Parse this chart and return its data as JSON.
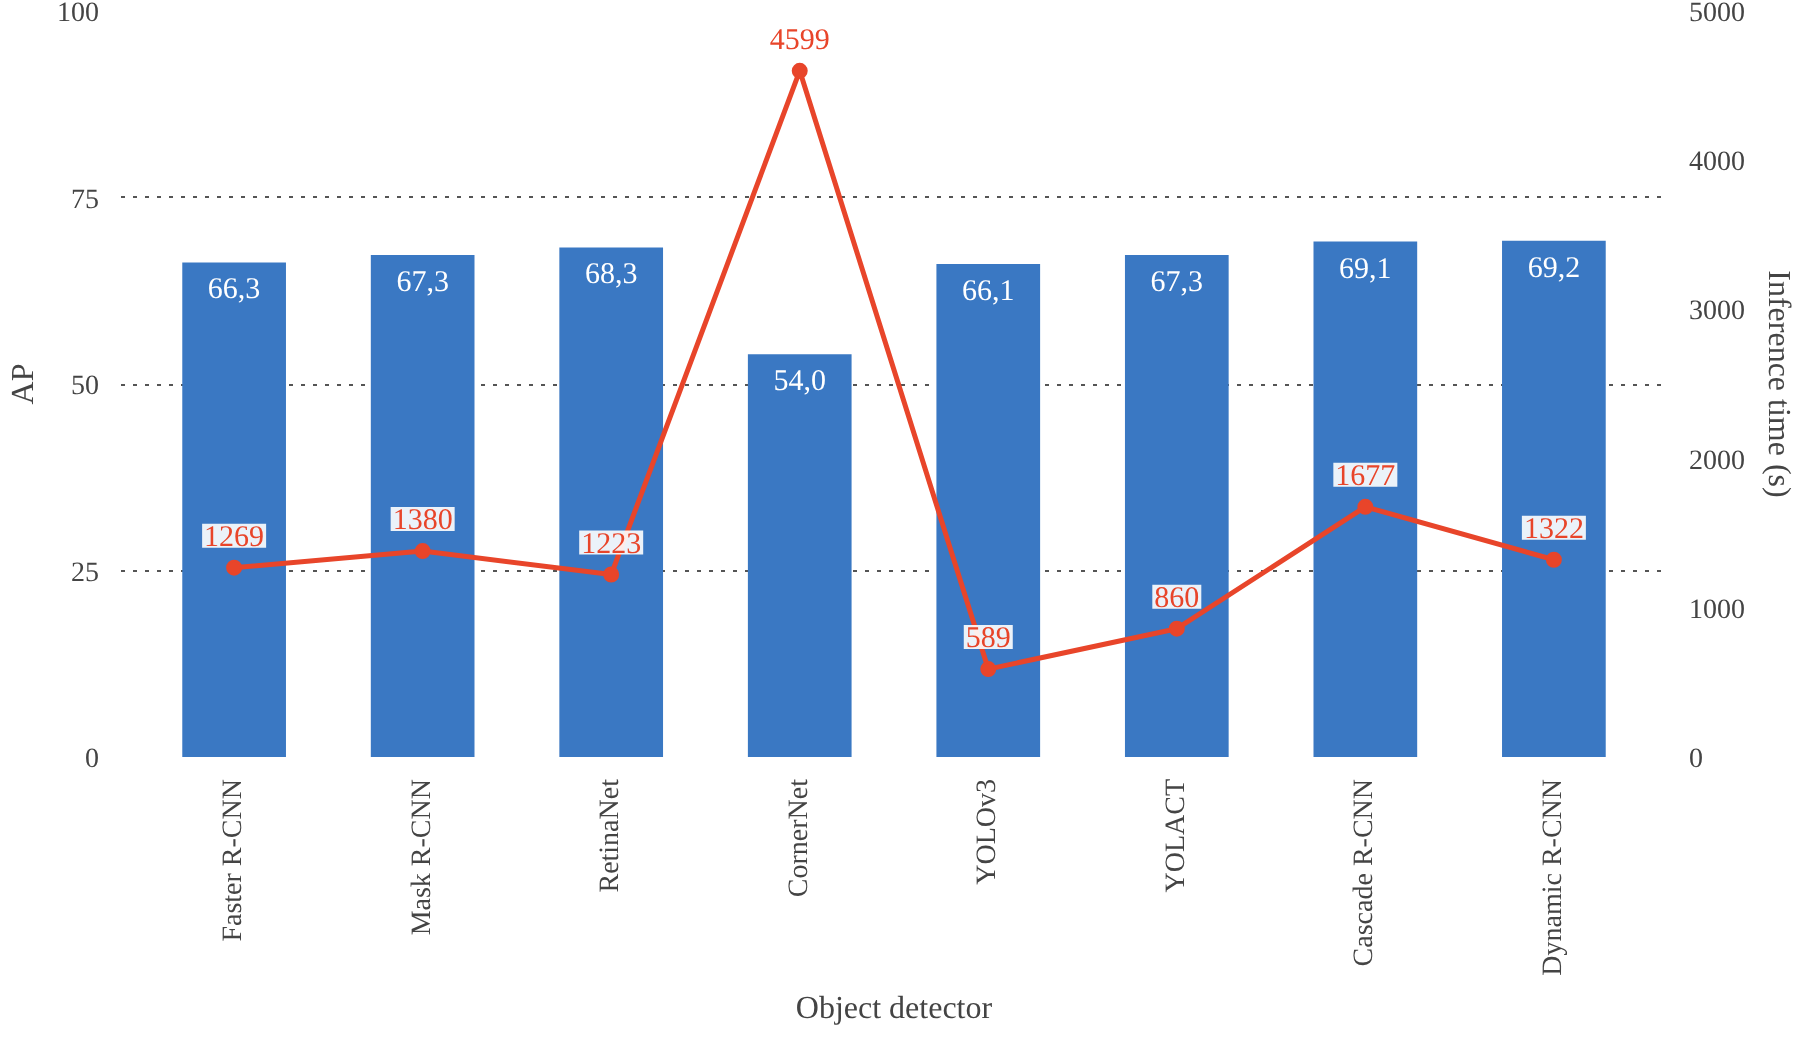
{
  "chart_data": {
    "type": "bar",
    "xlabel": "Object detector",
    "ylabel": "AP",
    "y2label": "Inference time (s)",
    "categories": [
      "Faster R-CNN",
      "Mask R-CNN",
      "RetinaNet",
      "CornerNet",
      "YOLOv3",
      "YOLACT",
      "Cascade R-CNN",
      "Dynamic R-CNN"
    ],
    "series": [
      {
        "color": "#3a78c3",
        "values": [
          66.3,
          67.3,
          68.3,
          54.0,
          66.1,
          67.3,
          69.1,
          69.2
        ],
        "value_labels": [
          "66,3",
          "67,3",
          "68,3",
          "54,0",
          "66,1",
          "67,3",
          "69,1",
          "69,2"
        ]
      },
      {
        "type": "line",
        "axis": "y2",
        "color": "#e8452a",
        "marker": "circle",
        "values": [
          1269,
          1380,
          1223,
          4599,
          589,
          860,
          1677,
          1322
        ],
        "value_labels": [
          "1269",
          "1380",
          "1223",
          "4599",
          "589",
          "860",
          "1677",
          "1322"
        ]
      }
    ],
    "ylim": [
      0,
      100
    ],
    "yticks": [
      0,
      25,
      50,
      75,
      100
    ],
    "y2lim": [
      0,
      5000
    ],
    "y2ticks": [
      0,
      1000,
      2000,
      3000,
      4000,
      5000
    ],
    "grid": "y",
    "line_style": "solid"
  }
}
